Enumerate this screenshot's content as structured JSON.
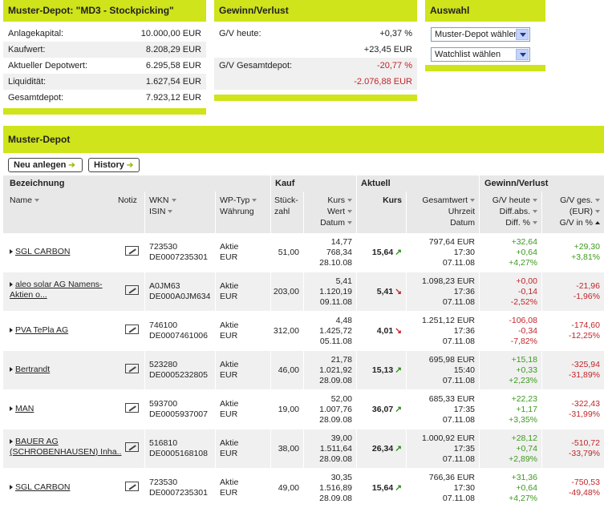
{
  "depot_box": {
    "title": "Muster-Depot: \"MD3 - Stockpicking\"",
    "rows": [
      {
        "label": "Anlagekapital:",
        "value": "10.000,00 EUR"
      },
      {
        "label": "Kaufwert:",
        "value": "8.208,29 EUR"
      },
      {
        "label": "Aktueller Depotwert:",
        "value": "6.295,58 EUR"
      },
      {
        "label": "Liquidität:",
        "value": "1.627,54 EUR"
      },
      {
        "label": "Gesamtdepot:",
        "value": "7.923,12 EUR"
      }
    ]
  },
  "gv_box": {
    "title": "Gewinn/Verlust",
    "heute_label": "G/V heute:",
    "heute_pct": "+0,37 %",
    "heute_abs": "+23,45 EUR",
    "gesamt_label": "G/V Gesamtdepot:",
    "gesamt_pct": "-20,77 %",
    "gesamt_abs": "-2.076,88 EUR"
  },
  "auswahl_box": {
    "title": "Auswahl",
    "select1": "Muster-Depot wählen",
    "select2": "Watchlist wählen"
  },
  "main": {
    "title": "Muster-Depot",
    "btn_new": "Neu anlegen",
    "btn_history": "History",
    "groups": {
      "bezeichnung": "Bezeichnung",
      "kauf": "Kauf",
      "aktuell": "Aktuell",
      "gv": "Gewinn/Verlust"
    },
    "headers": {
      "name": "Name",
      "notiz": "Notiz",
      "wkn": "WKN",
      "isin": "ISIN",
      "wptyp": "WP-Typ",
      "waehrung": "Währung",
      "stueck1": "Stück-",
      "stueck2": "zahl",
      "kurs": "Kurs",
      "wert": "Wert",
      "datum": "Datum",
      "akt_kurs": "Kurs",
      "gesamtwert": "Gesamtwert",
      "uhrzeit": "Uhrzeit",
      "akt_datum": "Datum",
      "gv_heute": "G/V heute",
      "diff_abs": "Diff.abs.",
      "diff_pct": "Diff. %",
      "gv_ges": "G/V ges.",
      "gv_eur": "(EUR)",
      "gv_pct": "G/V in %"
    },
    "rows": [
      {
        "name": "SGL CARBON",
        "name2": "",
        "wkn": "723530",
        "isin": "DE0007235301",
        "typ": "Aktie",
        "cur": "EUR",
        "stueck": "51,00",
        "k_kurs": "14,77",
        "k_wert": "768,34",
        "k_datum": "28.10.08",
        "a_kurs": "15,64",
        "dir": "up",
        "gesamtwert": "797,64 EUR",
        "zeit": "17:30",
        "a_datum": "07.11.08",
        "gvh": "+32,64",
        "dabs": "+0,64",
        "dpct": "+4,27%",
        "gvges": "+29,30",
        "gvpct": "+3,81%",
        "hs": "pos",
        "gs": "pos"
      },
      {
        "name": "aleo solar AG Namens-",
        "name2": "Aktien o...",
        "wkn": "A0JM63",
        "isin": "DE000A0JM634",
        "typ": "Aktie",
        "cur": "EUR",
        "stueck": "203,00",
        "k_kurs": "5,41",
        "k_wert": "1.120,19",
        "k_datum": "09.11.08",
        "a_kurs": "5,41",
        "dir": "down",
        "gesamtwert": "1.098,23 EUR",
        "zeit": "17:36",
        "a_datum": "07.11.08",
        "gvh": "+0,00",
        "dabs": "-0,14",
        "dpct": "-2,52%",
        "gvges": "-21,96",
        "gvpct": "-1,96%",
        "hs": "neg",
        "gs": "neg"
      },
      {
        "name": "PVA TePla AG",
        "name2": "",
        "wkn": "746100",
        "isin": "DE0007461006",
        "typ": "Aktie",
        "cur": "EUR",
        "stueck": "312,00",
        "k_kurs": "4,48",
        "k_wert": "1.425,72",
        "k_datum": "05.11.08",
        "a_kurs": "4,01",
        "dir": "down",
        "gesamtwert": "1.251,12 EUR",
        "zeit": "17:36",
        "a_datum": "07.11.08",
        "gvh": "-106,08",
        "dabs": "-0,34",
        "dpct": "-7,82%",
        "gvges": "-174,60",
        "gvpct": "-12,25%",
        "hs": "neg",
        "gs": "neg"
      },
      {
        "name": "Bertrandt",
        "name2": "",
        "wkn": "523280",
        "isin": "DE0005232805",
        "typ": "Aktie",
        "cur": "EUR",
        "stueck": "46,00",
        "k_kurs": "21,78",
        "k_wert": "1.021,92",
        "k_datum": "28.09.08",
        "a_kurs": "15,13",
        "dir": "up",
        "gesamtwert": "695,98 EUR",
        "zeit": "15:40",
        "a_datum": "07.11.08",
        "gvh": "+15,18",
        "dabs": "+0,33",
        "dpct": "+2,23%",
        "gvges": "-325,94",
        "gvpct": "-31,89%",
        "hs": "pos",
        "gs": "neg"
      },
      {
        "name": "MAN",
        "name2": "",
        "wkn": "593700",
        "isin": "DE0005937007",
        "typ": "Aktie",
        "cur": "EUR",
        "stueck": "19,00",
        "k_kurs": "52,00",
        "k_wert": "1.007,76",
        "k_datum": "28.09.08",
        "a_kurs": "36,07",
        "dir": "up",
        "gesamtwert": "685,33 EUR",
        "zeit": "17:35",
        "a_datum": "07.11.08",
        "gvh": "+22,23",
        "dabs": "+1,17",
        "dpct": "+3,35%",
        "gvges": "-322,43",
        "gvpct": "-31,99%",
        "hs": "pos",
        "gs": "neg"
      },
      {
        "name": "BAUER AG",
        "name2": "(SCHROBENHAUSEN) Inha..",
        "wkn": "516810",
        "isin": "DE0005168108",
        "typ": "Aktie",
        "cur": "EUR",
        "stueck": "38,00",
        "k_kurs": "39,00",
        "k_wert": "1.511,64",
        "k_datum": "28.09.08",
        "a_kurs": "26,34",
        "dir": "up",
        "gesamtwert": "1.000,92 EUR",
        "zeit": "17:35",
        "a_datum": "07.11.08",
        "gvh": "+28,12",
        "dabs": "+0,74",
        "dpct": "+2,89%",
        "gvges": "-510,72",
        "gvpct": "-33,79%",
        "hs": "pos",
        "gs": "neg"
      },
      {
        "name": "SGL CARBON",
        "name2": "",
        "wkn": "723530",
        "isin": "DE0007235301",
        "typ": "Aktie",
        "cur": "EUR",
        "stueck": "49,00",
        "k_kurs": "30,35",
        "k_wert": "1.516,89",
        "k_datum": "28.09.08",
        "a_kurs": "15,64",
        "dir": "up",
        "gesamtwert": "766,36 EUR",
        "zeit": "17:30",
        "a_datum": "07.11.08",
        "gvh": "+31,36",
        "dabs": "+0,64",
        "dpct": "+4,27%",
        "gvges": "-750,53",
        "gvpct": "-49,48%",
        "hs": "pos",
        "gs": "neg"
      }
    ]
  }
}
